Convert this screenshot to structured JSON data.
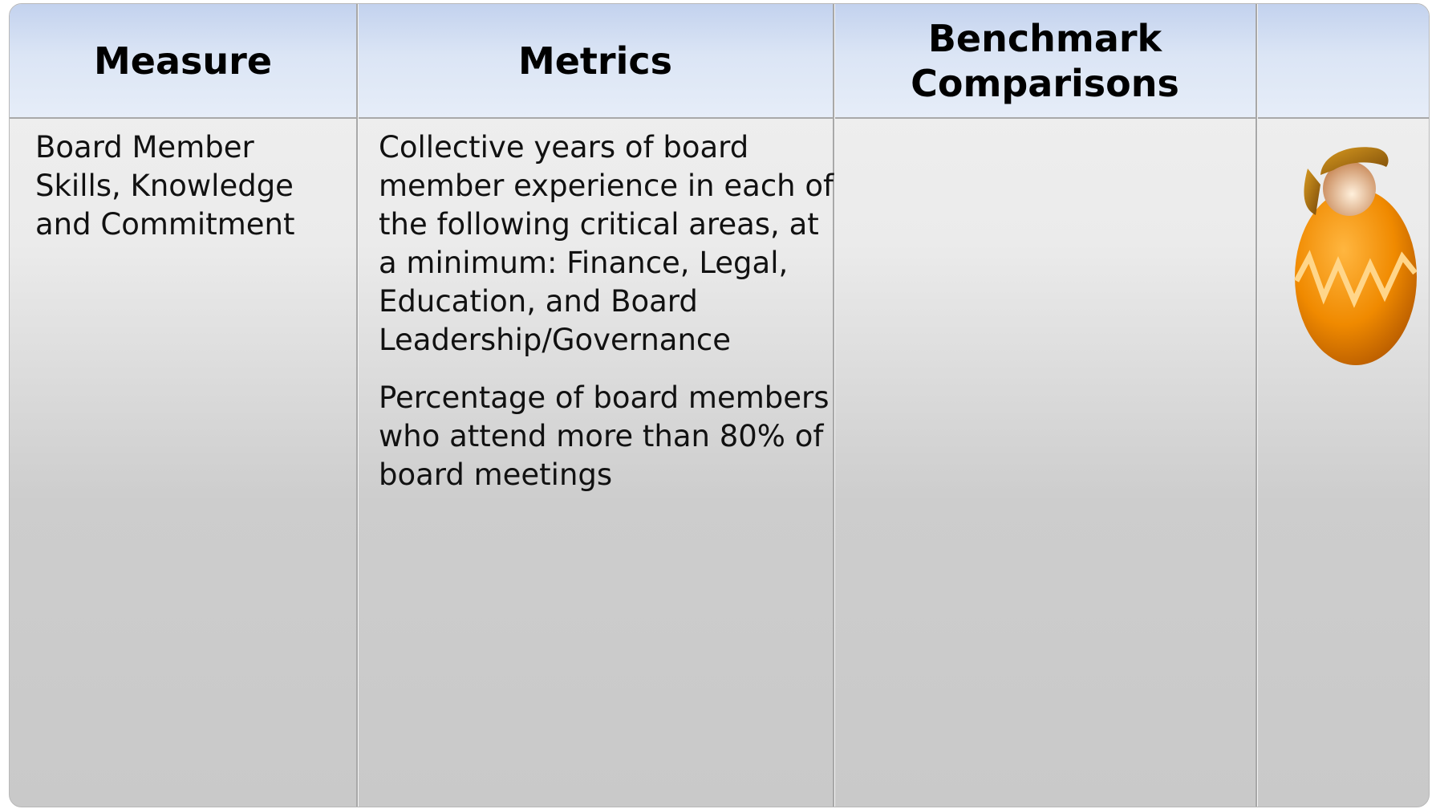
{
  "table": {
    "header": [
      "Measure",
      "Metrics",
      "Benchmark Comparisons"
    ],
    "rows": [
      [
        "Board Member Skills, Knowledge and Commitment",
        [
          "Collective years of board member experience in each of the following critical areas, at a minimum: Finance, Legal, Education, and Board Leadership/Governance",
          "Percentage of board members who attend more than 80% of board meetings"
        ]
      ]
    ]
  }
}
